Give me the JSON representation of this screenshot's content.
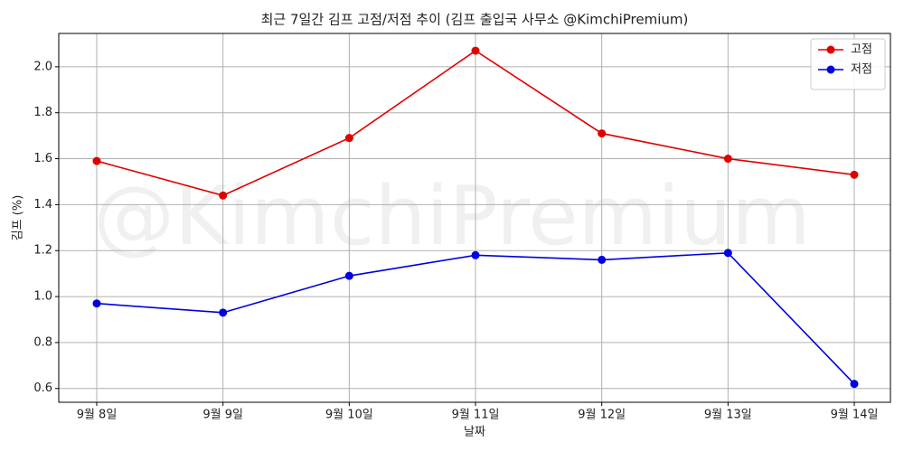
{
  "chart_data": {
    "type": "line",
    "title": "최근 7일간 김프 고점/저점 추이 (김프 출입국 사무소 @KimchiPremium)",
    "watermark": "@KimchiPremium",
    "x_label": "날짜",
    "y_label": "김프 (%)",
    "categories": [
      "9월 8일",
      "9월 9일",
      "9월 10일",
      "9월 11일",
      "9월 12일",
      "9월 13일",
      "9월 14일"
    ],
    "series": [
      {
        "name": "고점",
        "color": "#e00000",
        "values": [
          1.59,
          1.44,
          1.69,
          2.07,
          1.71,
          1.6,
          1.53
        ]
      },
      {
        "name": "저점",
        "color": "#0000e0",
        "values": [
          0.97,
          0.93,
          1.09,
          1.18,
          1.16,
          1.19,
          0.62
        ]
      }
    ],
    "ylim": [
      0.54,
      2.145
    ],
    "yticks": [
      0.6,
      0.8,
      {
        "value": 1.0,
        "label": "1.0"
      },
      1.2,
      1.4,
      1.6,
      1.8,
      {
        "value": 2.0,
        "label": "2.0"
      }
    ],
    "grid": true,
    "legend": "upper right"
  }
}
